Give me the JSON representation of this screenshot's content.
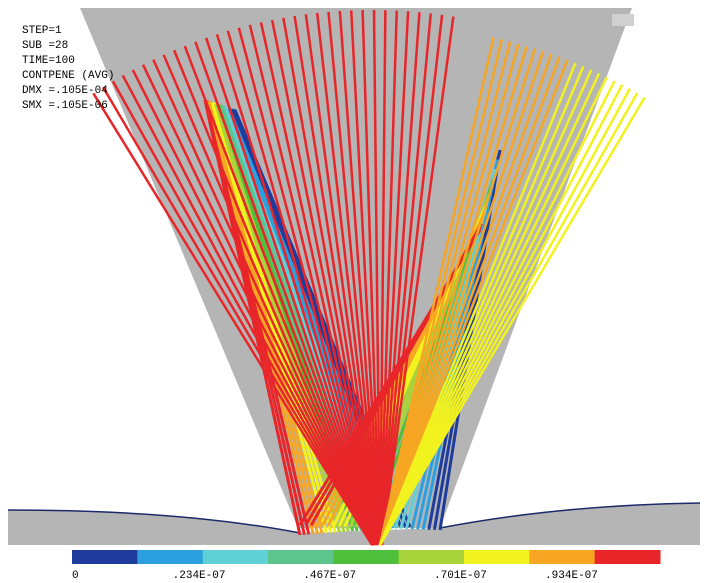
{
  "info": [
    "STEP=1",
    "SUB =28",
    "TIME=100",
    "CONTPENE (AVG)",
    "DMX =.105E-04",
    "SMX =.105E-06"
  ],
  "legend": {
    "colors": [
      "#1f3c9c",
      "#2c9fdf",
      "#5fd0d6",
      "#5cc58e",
      "#4fbf3c",
      "#a9d33a",
      "#f2f21e",
      "#f6a623",
      "#e8262a"
    ],
    "labels": [
      "0",
      ".234E-07",
      ".467E-07",
      ".701E-07",
      ".934E-07"
    ]
  }
}
